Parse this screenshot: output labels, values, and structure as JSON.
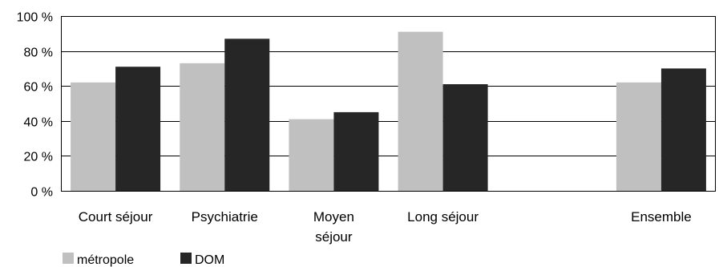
{
  "chart_data": {
    "type": "bar",
    "categories": [
      "Court séjour",
      "Psychiatrie",
      "Moyen séjour",
      "Long séjour",
      "",
      "Ensemble"
    ],
    "category_lines": [
      [
        "Court séjour"
      ],
      [
        "Psychiatrie"
      ],
      [
        "Moyen",
        "séjour"
      ],
      [
        "Long séjour"
      ],
      [],
      [
        "Ensemble"
      ]
    ],
    "series": [
      {
        "name": "métropole",
        "color": "#c0c0c0",
        "values": [
          62,
          73,
          41,
          91,
          null,
          62
        ]
      },
      {
        "name": "DOM",
        "color": "#262626",
        "values": [
          71,
          87,
          45,
          61,
          null,
          70
        ]
      }
    ],
    "ylim": [
      0,
      100
    ],
    "yticks": [
      0,
      20,
      40,
      60,
      80,
      100
    ],
    "ytick_labels": [
      "0 %",
      "20 %",
      "40 %",
      "60 %",
      "80 %",
      "100 %"
    ],
    "title": "",
    "xlabel": "",
    "ylabel": "",
    "grid": true,
    "legend_position": "bottom-left"
  }
}
